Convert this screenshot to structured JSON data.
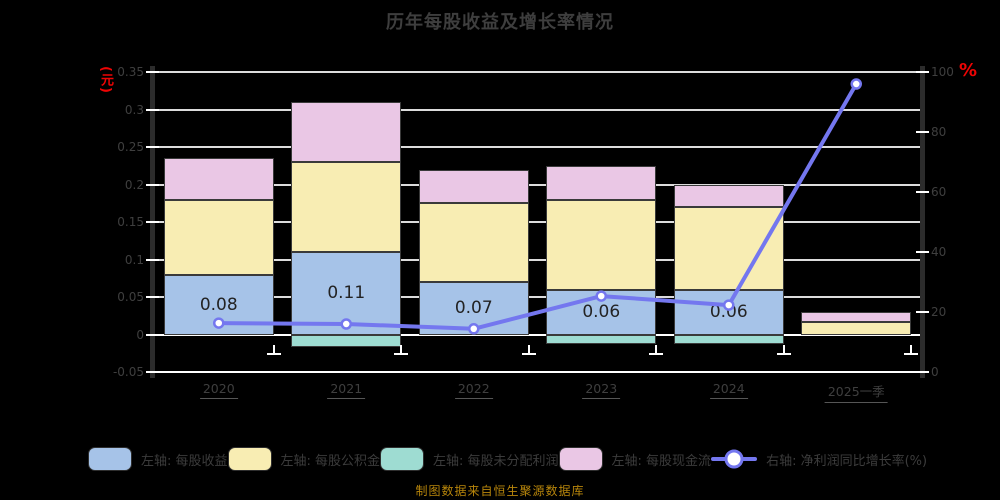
{
  "title": "历年每股收益及增长率情况",
  "source_note": "制图数据来自恒生聚源数据库",
  "colors": {
    "background": "#000000",
    "grid": "#dcdcdc",
    "grid_major": "#ffffff",
    "spine": "#2c2c2c",
    "text": "#3e3e3e",
    "unit_red": "#ee0404",
    "source": "#b8860b",
    "line": "#7477ef"
  },
  "chart_data": {
    "type": "stacked-bar+line",
    "title": "历年每股收益及增长率情况",
    "categories": [
      "2020",
      "2021",
      "2022",
      "2023",
      "2024",
      "2025一季"
    ],
    "bar_series": [
      {
        "name": "左轴: 每股收益",
        "color": "#a6c3e8",
        "values": [
          0.08,
          0.11,
          0.07,
          0.06,
          0.06,
          0
        ]
      },
      {
        "name": "左轴: 每股公积金",
        "color": "#f8edb3",
        "values": [
          0.1,
          0.12,
          0.105,
          0.12,
          0.11,
          0.017
        ]
      },
      {
        "name": "左轴: 每股未分配利润",
        "color": "#9edcd2",
        "values": [
          0,
          -0.016,
          0,
          -0.013,
          -0.013,
          0
        ]
      },
      {
        "name": "左轴: 每股现金流",
        "color": "#eac7e5",
        "values": [
          0.055,
          0.08,
          0.045,
          0.045,
          0.03,
          0.013
        ]
      }
    ],
    "line_series": {
      "name": "右轴: 净利润同比增长率(%)",
      "color": "#7477ef",
      "values": [
        16.3,
        16.0,
        14.4,
        25.3,
        22.3,
        96.0
      ]
    },
    "bar_labels": [
      "0.08",
      "0.11",
      "0.07",
      "0.06",
      "0.06",
      ""
    ],
    "left_axis": {
      "unit": "元",
      "min": -0.05,
      "max": 0.35,
      "tick_labels": [
        "0.35",
        "0.3",
        "0.25",
        "0.2",
        "0.15",
        "0.1",
        "0.05",
        "0",
        "-0.05"
      ]
    },
    "right_axis": {
      "unit": "%",
      "min": 0,
      "max": 100,
      "tick_labels": [
        "100",
        "80",
        "60",
        "40",
        "20",
        "0"
      ]
    },
    "legend_position": "bottom",
    "grid": true
  }
}
